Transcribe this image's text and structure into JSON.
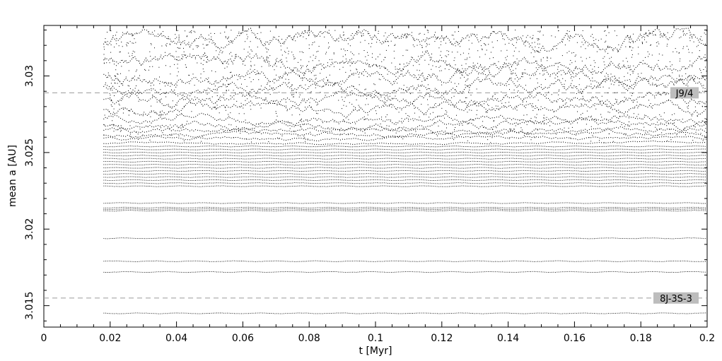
{
  "chart_data": {
    "type": "scatter",
    "xlabel": "t [Myr]",
    "ylabel": "mean a [AU]",
    "xlim": [
      0,
      0.2
    ],
    "ylim": [
      3.0136,
      3.0333
    ],
    "x_ticks": [
      {
        "value": 0,
        "label": "0"
      },
      {
        "value": 0.02,
        "label": "0.02"
      },
      {
        "value": 0.04,
        "label": "0.04"
      },
      {
        "value": 0.06,
        "label": "0.06"
      },
      {
        "value": 0.08,
        "label": "0.08"
      },
      {
        "value": 0.1,
        "label": "0.1"
      },
      {
        "value": 0.12,
        "label": "0.12"
      },
      {
        "value": 0.14,
        "label": "0.14"
      },
      {
        "value": 0.16,
        "label": "0.16"
      },
      {
        "value": 0.18,
        "label": "0.18"
      },
      {
        "value": 0.2,
        "label": "0.2"
      }
    ],
    "y_ticks": [
      {
        "value": 3.015,
        "label": "3.015"
      },
      {
        "value": 3.02,
        "label": "3.02"
      },
      {
        "value": 3.025,
        "label": "3.025"
      },
      {
        "value": 3.03,
        "label": "3.03"
      }
    ],
    "grid": false,
    "series_x_start": 0.018,
    "stable_orbits_a": [
      3.0145,
      3.0172,
      3.0179,
      3.0194,
      3.0212,
      3.0213,
      3.0214,
      3.0217,
      3.0228,
      3.023,
      3.0232,
      3.0234,
      3.0236,
      3.0238,
      3.024,
      3.0242,
      3.0244,
      3.0246,
      3.0248,
      3.025,
      3.0252,
      3.0254
    ],
    "chaotic_orbits_a": [
      3.0256,
      3.0259,
      3.0262,
      3.0265,
      3.0268,
      3.0272,
      3.0278,
      3.0285,
      3.0292,
      3.03,
      3.0308,
      3.0322
    ],
    "resonances": [
      {
        "label": "J9/4",
        "a": 3.0289
      },
      {
        "label": "8J-3S-3",
        "a": 3.0155
      }
    ]
  }
}
